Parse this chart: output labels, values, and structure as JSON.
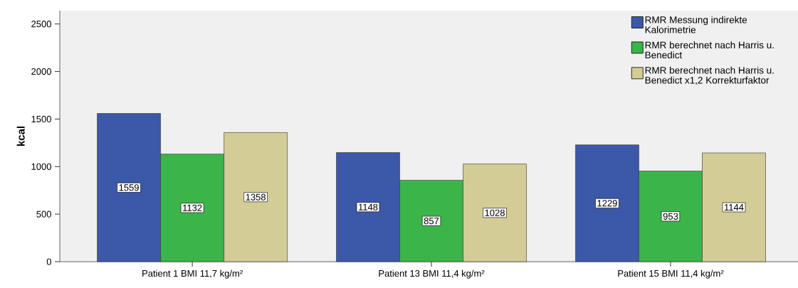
{
  "chart_data": {
    "type": "bar",
    "ylabel": "kcal",
    "categories": [
      "Patient 1 BMI 11,7 kg/m²",
      "Patient 13 BMI 11,4 kg/m²",
      "Patient 15 BMI 11,4 kg/m²"
    ],
    "series": [
      {
        "name": "RMR Messung indirekte Kalorimetrie",
        "color": "#3c58a8",
        "values": [
          1559,
          1148,
          1229
        ]
      },
      {
        "name": "RMR berechnet nach Harris u. Benedict",
        "color": "#3bb44a",
        "values": [
          1132,
          857,
          953
        ]
      },
      {
        "name": "RMR berechnet nach Harris u. Benedict x1,2 Korrekturfaktor",
        "color": "#d3cc96",
        "values": [
          1358,
          1028,
          1144
        ]
      }
    ],
    "ylim": [
      0,
      2640
    ],
    "yticks": [
      0,
      500,
      1000,
      1500,
      2000,
      2500
    ],
    "data_labels": true,
    "legend": "top right",
    "grid": false
  }
}
